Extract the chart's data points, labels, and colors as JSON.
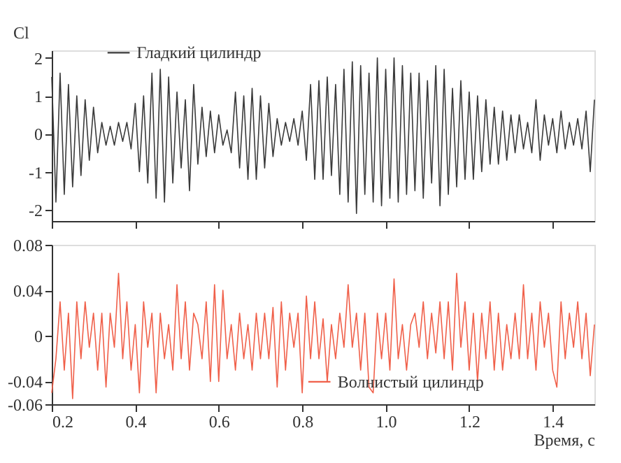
{
  "chart_data": [
    {
      "type": "line",
      "ylabel": "Cl",
      "xlim": [
        0.2,
        1.5
      ],
      "xticks": [
        0.2,
        0.4,
        0.6,
        0.8,
        1.0,
        1.2,
        1.4
      ],
      "ylim": [
        -2.3,
        2.2
      ],
      "yticks": [
        -2,
        -1,
        0,
        1,
        2
      ],
      "tick_labels": "y",
      "grid": false,
      "legend": "top left",
      "line_style": "solid",
      "x": [
        0.2,
        0.21,
        0.22,
        0.23,
        0.24,
        0.25,
        0.26,
        0.27,
        0.28,
        0.29,
        0.3,
        0.31,
        0.32,
        0.33,
        0.34,
        0.35,
        0.36,
        0.37,
        0.38,
        0.39,
        0.4,
        0.41,
        0.42,
        0.43,
        0.44,
        0.45,
        0.46,
        0.47,
        0.48,
        0.49,
        0.5,
        0.51,
        0.52,
        0.53,
        0.54,
        0.55,
        0.56,
        0.57,
        0.58,
        0.59,
        0.6,
        0.61,
        0.62,
        0.63,
        0.64,
        0.65,
        0.66,
        0.67,
        0.68,
        0.69,
        0.7,
        0.71,
        0.72,
        0.73,
        0.74,
        0.75,
        0.76,
        0.77,
        0.78,
        0.79,
        0.8,
        0.81,
        0.82,
        0.83,
        0.84,
        0.85,
        0.86,
        0.87,
        0.88,
        0.89,
        0.9,
        0.91,
        0.92,
        0.93,
        0.94,
        0.95,
        0.96,
        0.97,
        0.98,
        0.99,
        1.0,
        1.01,
        1.02,
        1.03,
        1.04,
        1.05,
        1.06,
        1.07,
        1.08,
        1.09,
        1.1,
        1.11,
        1.12,
        1.13,
        1.14,
        1.15,
        1.16,
        1.17,
        1.18,
        1.19,
        1.2,
        1.21,
        1.22,
        1.23,
        1.24,
        1.25,
        1.26,
        1.27,
        1.28,
        1.29,
        1.3,
        1.31,
        1.32,
        1.33,
        1.34,
        1.35,
        1.36,
        1.37,
        1.38,
        1.39,
        1.4,
        1.41,
        1.42,
        1.43,
        1.44,
        1.45,
        1.46,
        1.47,
        1.48,
        1.49,
        1.5
      ],
      "series": [
        {
          "name": "Гладкий цилиндр",
          "color": "#3a3a3a",
          "values": [
            1.5,
            -1.8,
            1.6,
            -1.6,
            1.3,
            -1.4,
            1.0,
            -1.1,
            0.9,
            -0.7,
            0.7,
            -0.5,
            0.3,
            -0.3,
            0.2,
            -0.3,
            0.3,
            -0.2,
            0.3,
            -0.4,
            0.8,
            -1.0,
            1.0,
            -1.3,
            1.6,
            -1.7,
            1.7,
            -1.8,
            1.5,
            -1.3,
            1.1,
            -0.9,
            0.9,
            -1.5,
            1.3,
            -0.8,
            0.7,
            -0.6,
            0.6,
            -0.5,
            0.5,
            -0.3,
            0.1,
            -0.5,
            1.1,
            -0.9,
            1.0,
            -1.2,
            1.2,
            -1.2,
            1.0,
            -0.9,
            0.8,
            -0.6,
            0.4,
            -0.3,
            0.3,
            -0.2,
            0.4,
            -0.3,
            0.6,
            -0.7,
            1.3,
            -1.2,
            1.4,
            -1.2,
            1.5,
            -1.1,
            1.3,
            -1.6,
            1.7,
            -1.8,
            1.9,
            -2.1,
            1.8,
            -1.6,
            1.6,
            -1.8,
            2.0,
            -1.9,
            1.7,
            -1.7,
            2.0,
            -1.8,
            1.8,
            -1.6,
            1.6,
            -1.5,
            1.6,
            -1.7,
            1.4,
            -1.3,
            1.8,
            -1.9,
            1.7,
            -1.6,
            1.2,
            -1.4,
            1.4,
            -1.2,
            1.1,
            -1.2,
            1.0,
            -1.0,
            0.9,
            -0.8,
            0.7,
            -0.8,
            0.6,
            -0.7,
            0.5,
            -0.5,
            0.5,
            -0.4,
            0.3,
            -0.5,
            0.9,
            -0.7,
            0.5,
            -0.3,
            0.4,
            -0.5,
            0.6,
            -0.4,
            0.3,
            -0.3,
            0.4,
            -0.4,
            0.6,
            -1.0,
            0.9
          ]
        }
      ]
    },
    {
      "type": "line",
      "xlabel": "Время, с",
      "xlim": [
        0.2,
        1.5
      ],
      "xticks": [
        0.2,
        0.4,
        0.6,
        0.8,
        {
          "value": 1,
          "label": "1.0"
        },
        1.2,
        1.4
      ],
      "ylim": [
        -0.06,
        0.08
      ],
      "yticks": [
        -0.06,
        -0.04,
        {
          "value": 0,
          "label": "0"
        },
        0.04,
        0.08
      ],
      "grid": false,
      "legend": "bottom right",
      "line_style": "solid",
      "x": [
        0.2,
        0.21,
        0.22,
        0.23,
        0.24,
        0.25,
        0.26,
        0.27,
        0.28,
        0.29,
        0.3,
        0.31,
        0.32,
        0.33,
        0.34,
        0.35,
        0.36,
        0.37,
        0.38,
        0.39,
        0.4,
        0.41,
        0.42,
        0.43,
        0.44,
        0.45,
        0.46,
        0.47,
        0.48,
        0.49,
        0.5,
        0.51,
        0.52,
        0.53,
        0.54,
        0.55,
        0.56,
        0.57,
        0.58,
        0.59,
        0.6,
        0.61,
        0.62,
        0.63,
        0.64,
        0.65,
        0.66,
        0.67,
        0.68,
        0.69,
        0.7,
        0.71,
        0.72,
        0.73,
        0.74,
        0.75,
        0.76,
        0.77,
        0.78,
        0.79,
        0.8,
        0.81,
        0.82,
        0.83,
        0.84,
        0.85,
        0.86,
        0.87,
        0.88,
        0.89,
        0.9,
        0.91,
        0.92,
        0.93,
        0.94,
        0.95,
        0.96,
        0.97,
        0.98,
        0.99,
        1.0,
        1.01,
        1.02,
        1.03,
        1.04,
        1.05,
        1.06,
        1.07,
        1.08,
        1.09,
        1.1,
        1.11,
        1.12,
        1.13,
        1.14,
        1.15,
        1.16,
        1.17,
        1.18,
        1.19,
        1.2,
        1.21,
        1.22,
        1.23,
        1.24,
        1.25,
        1.26,
        1.27,
        1.28,
        1.29,
        1.3,
        1.31,
        1.32,
        1.33,
        1.34,
        1.35,
        1.36,
        1.37,
        1.38,
        1.39,
        1.4,
        1.41,
        1.42,
        1.43,
        1.44,
        1.45,
        1.46,
        1.47,
        1.48,
        1.49,
        1.5
      ],
      "series": [
        {
          "name": "Волнистый цилиндр",
          "color": "#f0604a",
          "values": [
            -0.05,
            -0.02,
            0.03,
            -0.03,
            0.02,
            -0.055,
            0.03,
            -0.02,
            0.03,
            -0.01,
            0.02,
            -0.03,
            0.02,
            -0.045,
            0.02,
            -0.01,
            0.055,
            -0.02,
            0.03,
            -0.03,
            0.01,
            -0.05,
            0.03,
            -0.01,
            0.02,
            -0.05,
            0.02,
            -0.02,
            0.01,
            -0.03,
            0.045,
            -0.02,
            0.03,
            -0.03,
            0.02,
            0.01,
            -0.02,
            0.03,
            -0.04,
            0.045,
            -0.04,
            0.04,
            -0.02,
            0.01,
            -0.03,
            0.02,
            -0.02,
            0.01,
            -0.03,
            0.02,
            -0.02,
            0.02,
            -0.02,
            0.025,
            -0.045,
            0.03,
            -0.03,
            0.02,
            -0.01,
            0.02,
            -0.05,
            0.035,
            -0.02,
            0.03,
            -0.02,
            0.015,
            -0.04,
            0.01,
            -0.02,
            0.02,
            -0.01,
            0.045,
            -0.01,
            0.02,
            -0.03,
            0.02,
            -0.045,
            -0.05,
            0.02,
            -0.02,
            0.02,
            -0.03,
            0.05,
            -0.02,
            0.01,
            -0.03,
            0.01,
            0.02,
            -0.01,
            0.03,
            -0.02,
            0.02,
            -0.015,
            0.03,
            -0.02,
            0.03,
            -0.03,
            0.055,
            -0.01,
            0.03,
            -0.03,
            0.02,
            -0.04,
            0.02,
            -0.02,
            0.03,
            -0.03,
            0.02,
            -0.03,
            0.01,
            -0.02,
            0.02,
            -0.02,
            0.045,
            -0.02,
            0.02,
            -0.03,
            0.03,
            -0.01,
            0.02,
            -0.03,
            -0.045,
            0.03,
            -0.02,
            0.02,
            -0.01,
            0.03,
            -0.02,
            0.02,
            -0.035,
            0.01
          ]
        }
      ]
    }
  ]
}
